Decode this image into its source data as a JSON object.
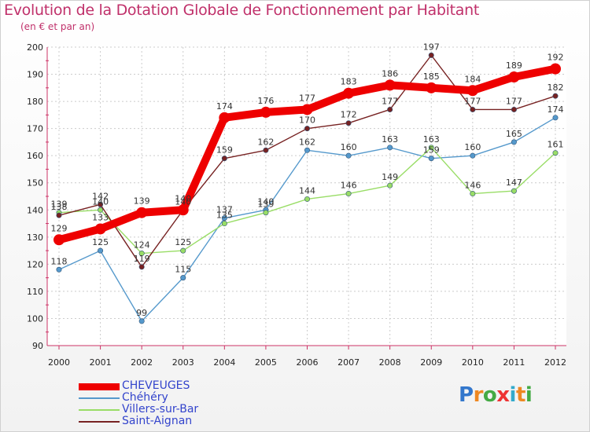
{
  "chart_data": {
    "type": "line",
    "title": "Evolution de la Dotation Globale de Fonctionnement par Habitant",
    "subtitle": "(en € et par an)",
    "xlabel": "",
    "ylabel": "",
    "categories": [
      "2000",
      "2001",
      "2002",
      "2003",
      "2004",
      "2005",
      "2006",
      "2007",
      "2008",
      "2009",
      "2010",
      "2011",
      "2012"
    ],
    "ylim": [
      90,
      200
    ],
    "yticks": [
      "90",
      "100",
      "110",
      "120",
      "130",
      "140",
      "150",
      "160",
      "170",
      "180",
      "190",
      "200"
    ],
    "grid": true,
    "legend_position": "bottom-left",
    "series": [
      {
        "name": "CHEVEUGES",
        "color": "#ee0000",
        "values": [
          129,
          133,
          139,
          140,
          174,
          176,
          177,
          183,
          186,
          185,
          184,
          189,
          192
        ],
        "labels": [
          "129",
          "133",
          "139",
          "140",
          "174",
          "176",
          "177",
          "183",
          "186",
          "185",
          "184",
          "189",
          "192"
        ]
      },
      {
        "name": "Chéhéry",
        "color": "#5599cc",
        "values": [
          118,
          125,
          99,
          115,
          137,
          140,
          162,
          160,
          163,
          159,
          160,
          165,
          174
        ],
        "labels": [
          "118",
          "125",
          "99",
          "115",
          "137",
          "140",
          "162",
          "160",
          "163",
          "159",
          "160",
          "165",
          "174"
        ]
      },
      {
        "name": "Villers-sur-Bar",
        "color": "#99dd66",
        "values": [
          139,
          140,
          124,
          125,
          135,
          139,
          144,
          146,
          149,
          163,
          146,
          147,
          161
        ],
        "labels": [
          "139",
          "140",
          "124",
          "125",
          "135",
          "139",
          "144",
          "146",
          "149",
          "163",
          "146",
          "147",
          "161"
        ]
      },
      {
        "name": "Saint-Aignan",
        "color": "#772222",
        "values": [
          138,
          142,
          119,
          140,
          159,
          162,
          170,
          172,
          177,
          197,
          177,
          177,
          182
        ],
        "labels": [
          "138",
          "142",
          "119",
          "140",
          "159",
          "162",
          "170",
          "172",
          "177",
          "197",
          "177",
          "177",
          "182"
        ]
      }
    ]
  },
  "brand": {
    "letters": [
      "P",
      "r",
      "o",
      "x",
      "i",
      "t",
      "i"
    ],
    "colors": [
      "#3377cc",
      "#ee8822",
      "#44aa44",
      "#ee3333",
      "#33aacc",
      "#ee8822",
      "#44aa44"
    ]
  }
}
